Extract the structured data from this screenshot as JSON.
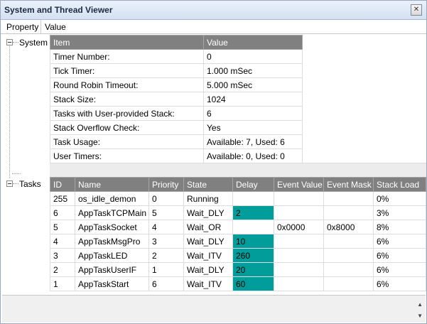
{
  "window": {
    "title": "System and Thread Viewer",
    "close_glyph": "✕"
  },
  "columns": {
    "property": "Property",
    "value": "Value"
  },
  "tree": {
    "system_label": "System",
    "tasks_label": "Tasks"
  },
  "system_table": {
    "headers": [
      "Item",
      "Value"
    ],
    "rows": [
      [
        "Timer Number:",
        "0"
      ],
      [
        "Tick Timer:",
        "1.000 mSec"
      ],
      [
        "Round Robin Timeout:",
        "5.000 mSec"
      ],
      [
        "Stack Size:",
        "1024"
      ],
      [
        "Tasks with User-provided Stack:",
        "6"
      ],
      [
        "Stack Overflow Check:",
        "Yes"
      ],
      [
        "Task Usage:",
        "Available: 7, Used: 6"
      ],
      [
        "User Timers:",
        "Available: 0, Used: 0"
      ]
    ]
  },
  "tasks_table": {
    "headers": [
      "ID",
      "Name",
      "Priority",
      "State",
      "Delay",
      "Event Value",
      "Event Mask",
      "Stack Load"
    ],
    "rows": [
      [
        "255",
        "os_idle_demon",
        "0",
        "Running",
        "",
        "",
        "",
        "0%"
      ],
      [
        "6",
        "AppTaskTCPMain",
        "5",
        "Wait_DLY",
        "2",
        "",
        "",
        "3%"
      ],
      [
        "5",
        "AppTaskSocket",
        "4",
        "Wait_OR",
        "",
        "0x0000",
        "0x8000",
        "8%"
      ],
      [
        "4",
        "AppTaskMsgPro",
        "3",
        "Wait_DLY",
        "10",
        "",
        "",
        "6%"
      ],
      [
        "3",
        "AppTaskLED",
        "2",
        "Wait_ITV",
        "260",
        "",
        "",
        "6%"
      ],
      [
        "2",
        "AppTaskUserIF",
        "1",
        "Wait_DLY",
        "20",
        "",
        "",
        "6%"
      ],
      [
        "1",
        "AppTaskStart",
        "6",
        "Wait_ITV",
        "60",
        "",
        "",
        "6%"
      ]
    ],
    "delay_highlight_color": "#009d9a"
  },
  "scrollbar": {
    "up": "▲",
    "down": "▼"
  }
}
